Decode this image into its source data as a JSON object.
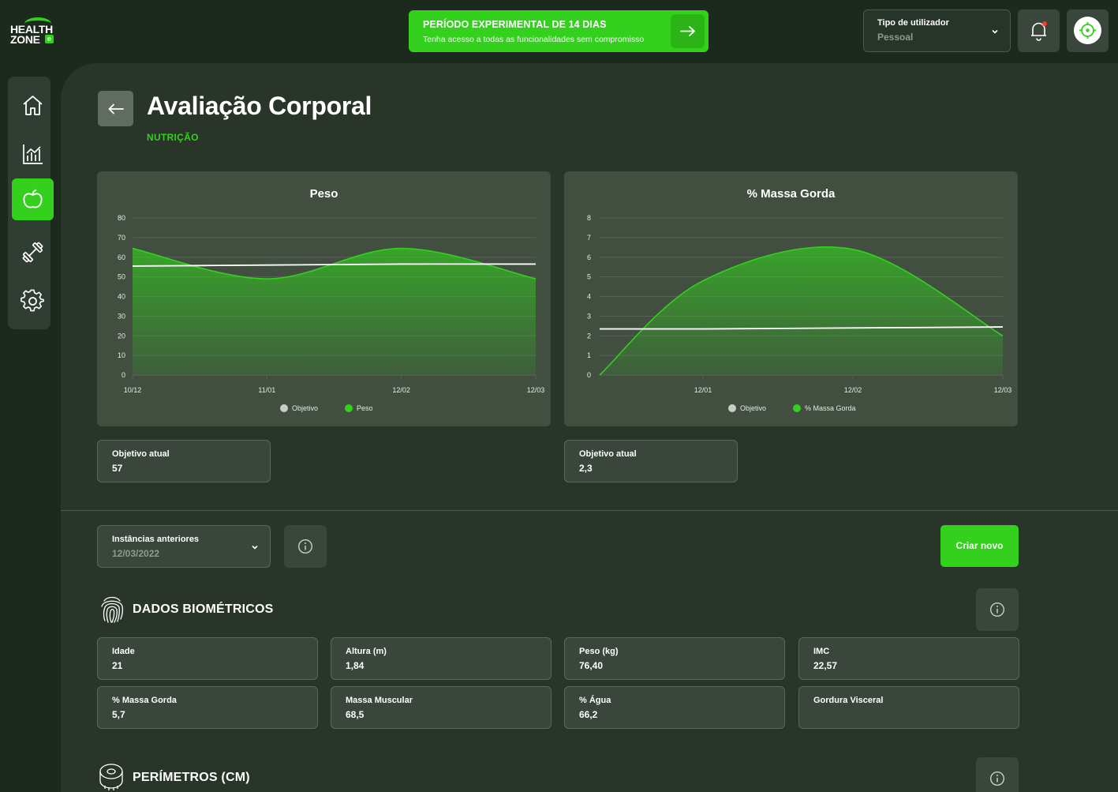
{
  "logo": {
    "line1": "HEALTH",
    "line2": "ZONE",
    "badge": "e"
  },
  "trial": {
    "title": "PERÍODO EXPERIMENTAL DE 14 DIAS",
    "subtitle": "Tenha acesso a todas as funcionalidades sem compromisso"
  },
  "user_type": {
    "label": "Tipo de utilizador",
    "value": "Pessoal"
  },
  "sidebar": {
    "items": [
      {
        "name": "home",
        "icon": "home-icon",
        "active": false
      },
      {
        "name": "stats",
        "icon": "chart-icon",
        "active": false
      },
      {
        "name": "nutrition",
        "icon": "apple-icon",
        "active": true
      },
      {
        "name": "workout",
        "icon": "dumbbell-icon",
        "active": false
      },
      {
        "name": "settings",
        "icon": "gear-icon",
        "active": false
      }
    ]
  },
  "page": {
    "title": "Avaliação Corporal",
    "subtitle": "NUTRIÇÃO"
  },
  "colors": {
    "accent": "#33d11e",
    "bg": "#1c2a1e",
    "panel": "#2a3529",
    "card": "#414e40"
  },
  "chart_data": [
    {
      "type": "area",
      "title": "Peso",
      "x": [
        "10/12",
        "11/01",
        "12/02",
        "12/03"
      ],
      "yticks": [
        0,
        10,
        20,
        30,
        40,
        50,
        60,
        70,
        80
      ],
      "ylim": [
        0,
        80
      ],
      "series": [
        {
          "name": "Peso",
          "color": "#33d11e",
          "values": [
            64.5,
            49,
            64.5,
            49
          ]
        },
        {
          "name": "Objetivo",
          "color": "#ffffff",
          "values": [
            55.5,
            56,
            56.5,
            56.5
          ]
        }
      ],
      "legend": [
        "Objetivo",
        "Peso"
      ],
      "legend_placement": "bottom"
    },
    {
      "type": "area",
      "title": "% Massa Gorda",
      "x": [
        "12/01",
        "12/02",
        "12/03"
      ],
      "yticks": [
        0,
        1,
        2,
        3,
        4,
        5,
        6,
        7,
        8
      ],
      "ylim": [
        0,
        8
      ],
      "series": [
        {
          "name": "% Massa Gorda",
          "color": "#33d11e",
          "values": [
            4.8,
            6.4,
            2.0
          ]
        },
        {
          "name": "Objetivo",
          "color": "#ffffff",
          "values": [
            2.35,
            2.4,
            2.45
          ]
        }
      ],
      "legend": [
        "Objetivo",
        "% Massa Gorda"
      ],
      "legend_placement": "bottom"
    }
  ],
  "goals": [
    {
      "label": "Objetivo atual",
      "value": "57"
    },
    {
      "label": "Objetivo atual",
      "value": "2,3"
    }
  ],
  "previous": {
    "label": "Instâncias anteriores",
    "value": "12/03/2022"
  },
  "create_label": "Criar novo",
  "biometrics": {
    "heading": "DADOS BIOMÉTRICOS",
    "items": [
      {
        "label": "Idade",
        "value": "21"
      },
      {
        "label": "Altura (m)",
        "value": "1,84"
      },
      {
        "label": "Peso (kg)",
        "value": "76,40"
      },
      {
        "label": "IMC",
        "value": "22,57"
      },
      {
        "label": "% Massa Gorda",
        "value": "5,7"
      },
      {
        "label": "Massa Muscular",
        "value": "68,5"
      },
      {
        "label": "% Água",
        "value": "66,2"
      },
      {
        "label": "Gordura Visceral",
        "value": ""
      }
    ]
  },
  "perimeters": {
    "heading": "PERÍMETROS (CM)"
  }
}
